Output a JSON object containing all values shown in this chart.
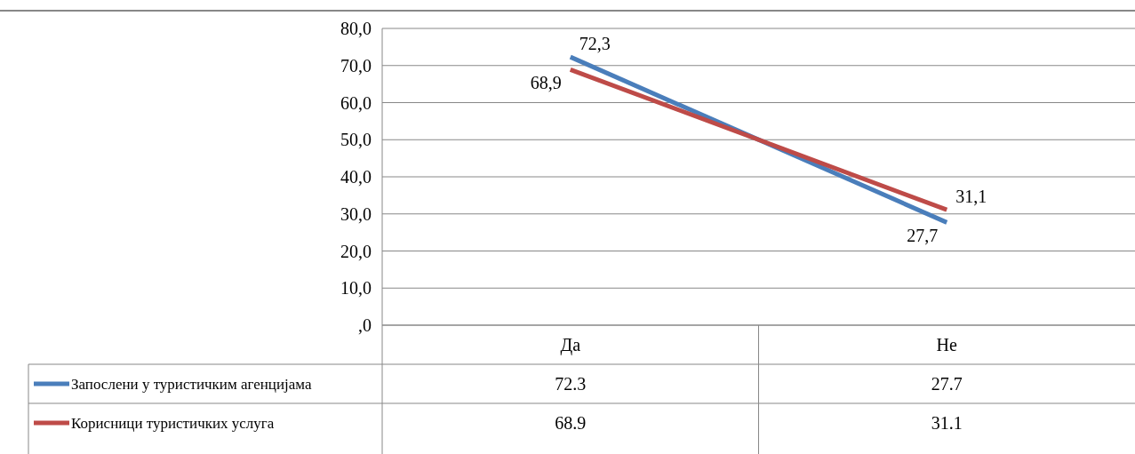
{
  "chart_data": {
    "type": "line",
    "categories": [
      "Да",
      "Не"
    ],
    "series": [
      {
        "name": "Запослени у туристичким агенцијама",
        "color": "#4a7ebb",
        "values": [
          72.3,
          27.7
        ],
        "value_labels": [
          "72.3",
          "27.7"
        ]
      },
      {
        "name": "Корисници туристичких услуга",
        "color": "#be4b48",
        "values": [
          68.9,
          31.1
        ],
        "value_labels": [
          "68.9",
          "31.1"
        ]
      }
    ],
    "annotations": [
      {
        "text": "72,3",
        "x": "Да",
        "y": 72.3
      },
      {
        "text": "68,9",
        "x": "Да",
        "y": 68.9
      },
      {
        "text": "27,7",
        "x": "Не",
        "y": 27.7
      },
      {
        "text": "31,1",
        "x": "Не",
        "y": 31.1
      }
    ],
    "ylim": [
      0,
      80
    ],
    "yticks": [
      {
        "value": 0,
        "label": ",0"
      },
      {
        "value": 10,
        "label": "10,0"
      },
      {
        "value": 20,
        "label": "20,0"
      },
      {
        "value": 30,
        "label": "30,0"
      },
      {
        "value": 40,
        "label": "40,0"
      },
      {
        "value": 50,
        "label": "50,0"
      },
      {
        "value": 60,
        "label": "60,0"
      },
      {
        "value": 70,
        "label": "70,0"
      },
      {
        "value": 80,
        "label": "80,0"
      }
    ],
    "grid": "y",
    "legend": "bottom",
    "marker": "none",
    "line_style": "solid"
  }
}
